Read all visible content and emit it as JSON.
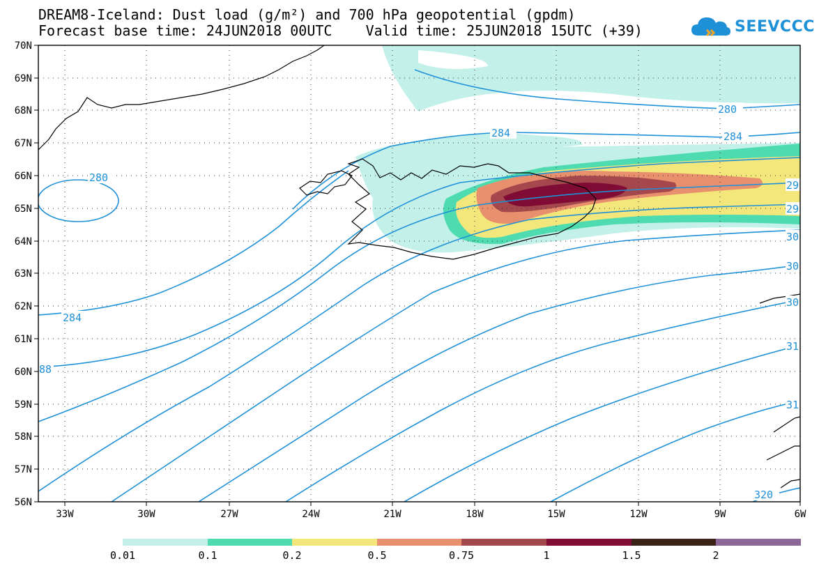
{
  "title": {
    "line1": "DREAM8-Iceland: Dust load (g/m²) and 700 hPa geopotential (gpdm)",
    "line2": "Forecast base time: 24JUN2018 00UTC    Valid time: 25JUN2018 15UTC (+39)"
  },
  "logo": {
    "text": "SEEVCCC",
    "icon": "cloud-icon",
    "color": "#1e90d8"
  },
  "axes": {
    "lat_labels": [
      "70N",
      "69N",
      "68N",
      "67N",
      "66N",
      "65N",
      "64N",
      "63N",
      "62N",
      "61N",
      "60N",
      "59N",
      "58N",
      "57N",
      "56N"
    ],
    "lon_labels": [
      "33W",
      "30W",
      "27W",
      "24W",
      "21W",
      "18W",
      "15W",
      "12W",
      "9W",
      "6W"
    ]
  },
  "contour_labels": [
    "280",
    "284",
    "280",
    "284",
    "29",
    "29",
    "30",
    "30",
    "30",
    "31",
    "31",
    "320",
    "284",
    "88"
  ],
  "colorbar": {
    "ticks": [
      "0.01",
      "0.1",
      "0.2",
      "0.5",
      "0.75",
      "1",
      "1.5",
      "2"
    ],
    "colors": [
      "#c3f1ea",
      "#4edbaf",
      "#f3e67a",
      "#e8906e",
      "#a4484e",
      "#800c35",
      "#3a2216",
      "#8d6798"
    ]
  },
  "colors": {
    "contour": "#1e90d8",
    "coast": "#000000"
  }
}
